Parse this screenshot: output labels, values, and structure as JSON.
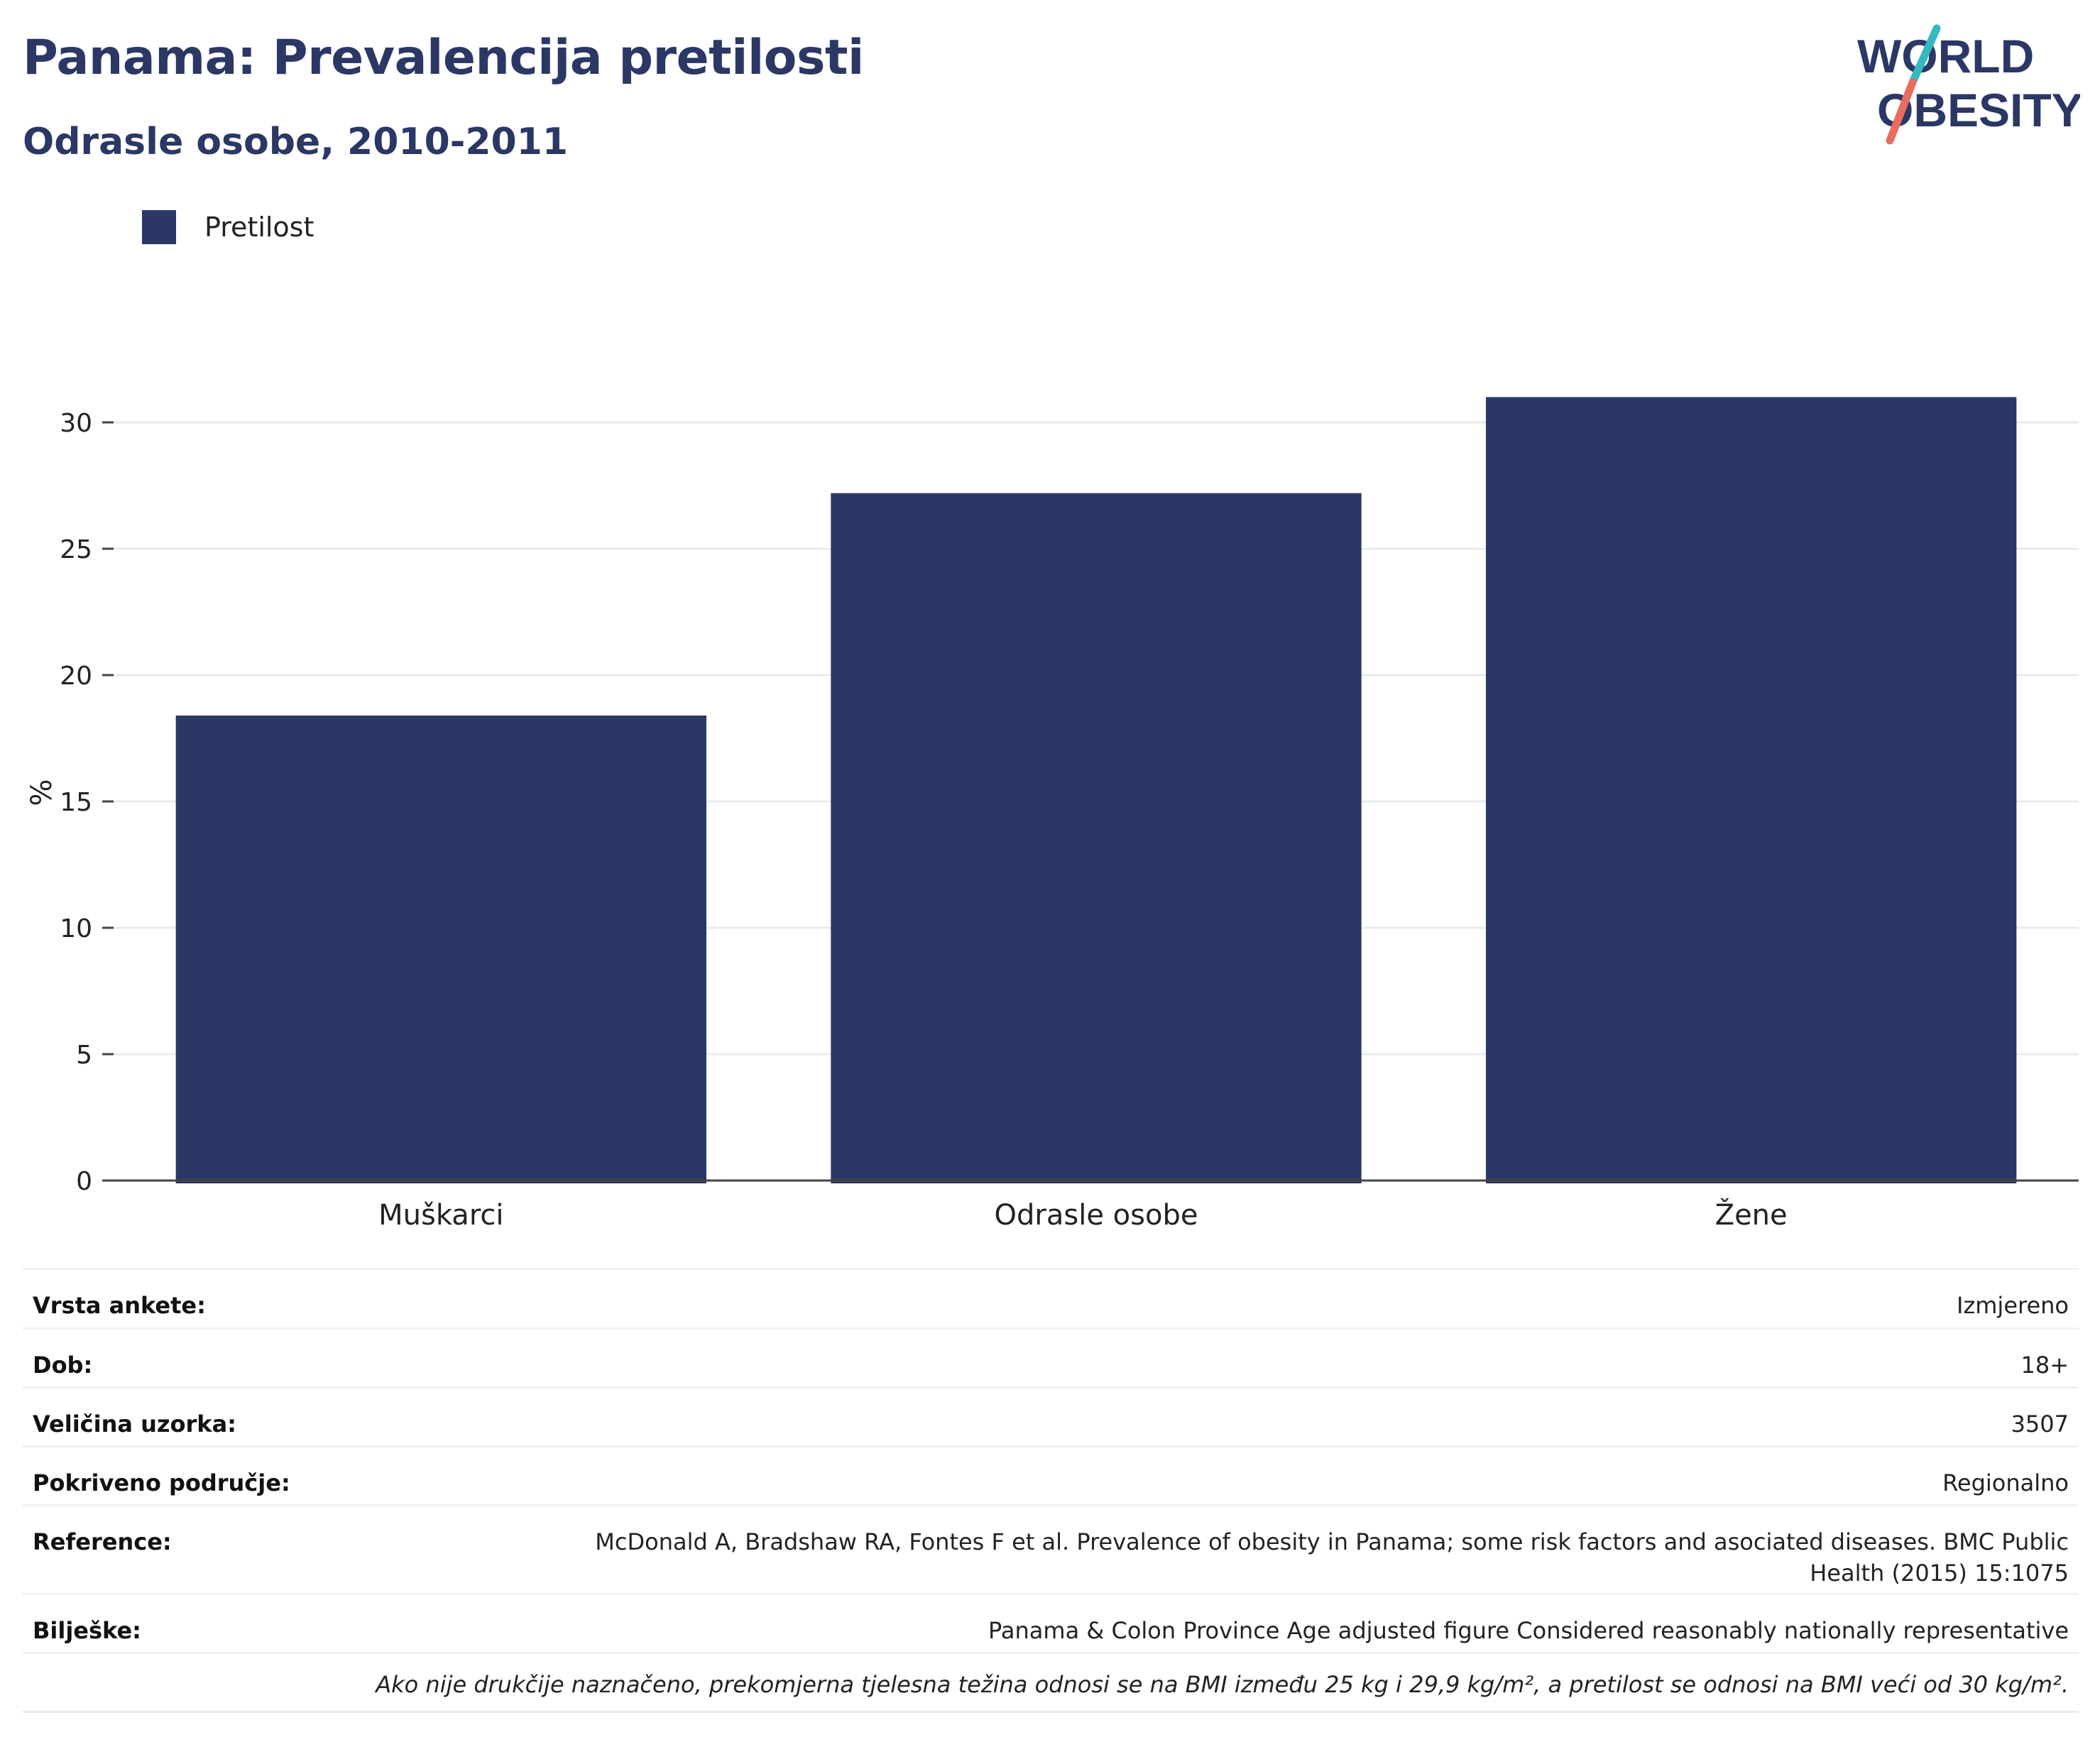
{
  "header": {
    "title": "Panama: Prevalencija pretilosti",
    "subtitle": "Odrasle osobe, 2010-2011",
    "logo_text_line1": "WORLD",
    "logo_text_line2": "OBESITY"
  },
  "colors": {
    "bar": "#2b3764",
    "title": "#2b3764",
    "grid": "#e8ebee",
    "logo_slash_top": "#35b8c0",
    "logo_slash_bottom": "#e86d5c"
  },
  "chart_data": {
    "type": "bar",
    "categories": [
      "Muškarci",
      "Odrasle osobe",
      "Žene"
    ],
    "series": [
      {
        "name": "Pretilost",
        "values": [
          18.4,
          27.2,
          31.0
        ]
      }
    ],
    "ylabel": "%",
    "xlabel": "",
    "ylim": [
      0,
      32
    ],
    "yticks": [
      0,
      5,
      10,
      15,
      20,
      25,
      30
    ],
    "grid": true,
    "legend": "top-left"
  },
  "info": {
    "rows": [
      {
        "label": "Vrsta ankete:",
        "value": "Izmjereno"
      },
      {
        "label": "Dob:",
        "value": "18+"
      },
      {
        "label": "Veličina uzorka:",
        "value": "3507"
      },
      {
        "label": "Pokriveno područje:",
        "value": "Regionalno"
      },
      {
        "label": "Reference:",
        "value": "McDonald A, Bradshaw RA, Fontes F et al. Prevalence of obesity in Panama; some risk factors and asociated diseases. BMC Public Health (2015) 15:1075"
      },
      {
        "label": "Bilješke:",
        "value": "Panama & Colon Province Age adjusted figure Considered reasonably nationally representative"
      }
    ],
    "footnote": "Ako nije drukčije naznačeno, prekomjerna tjelesna težina odnosi se na BMI između 25 kg i 29,9 kg/m², a pretilost se odnosi na BMI veći od 30 kg/m²."
  }
}
